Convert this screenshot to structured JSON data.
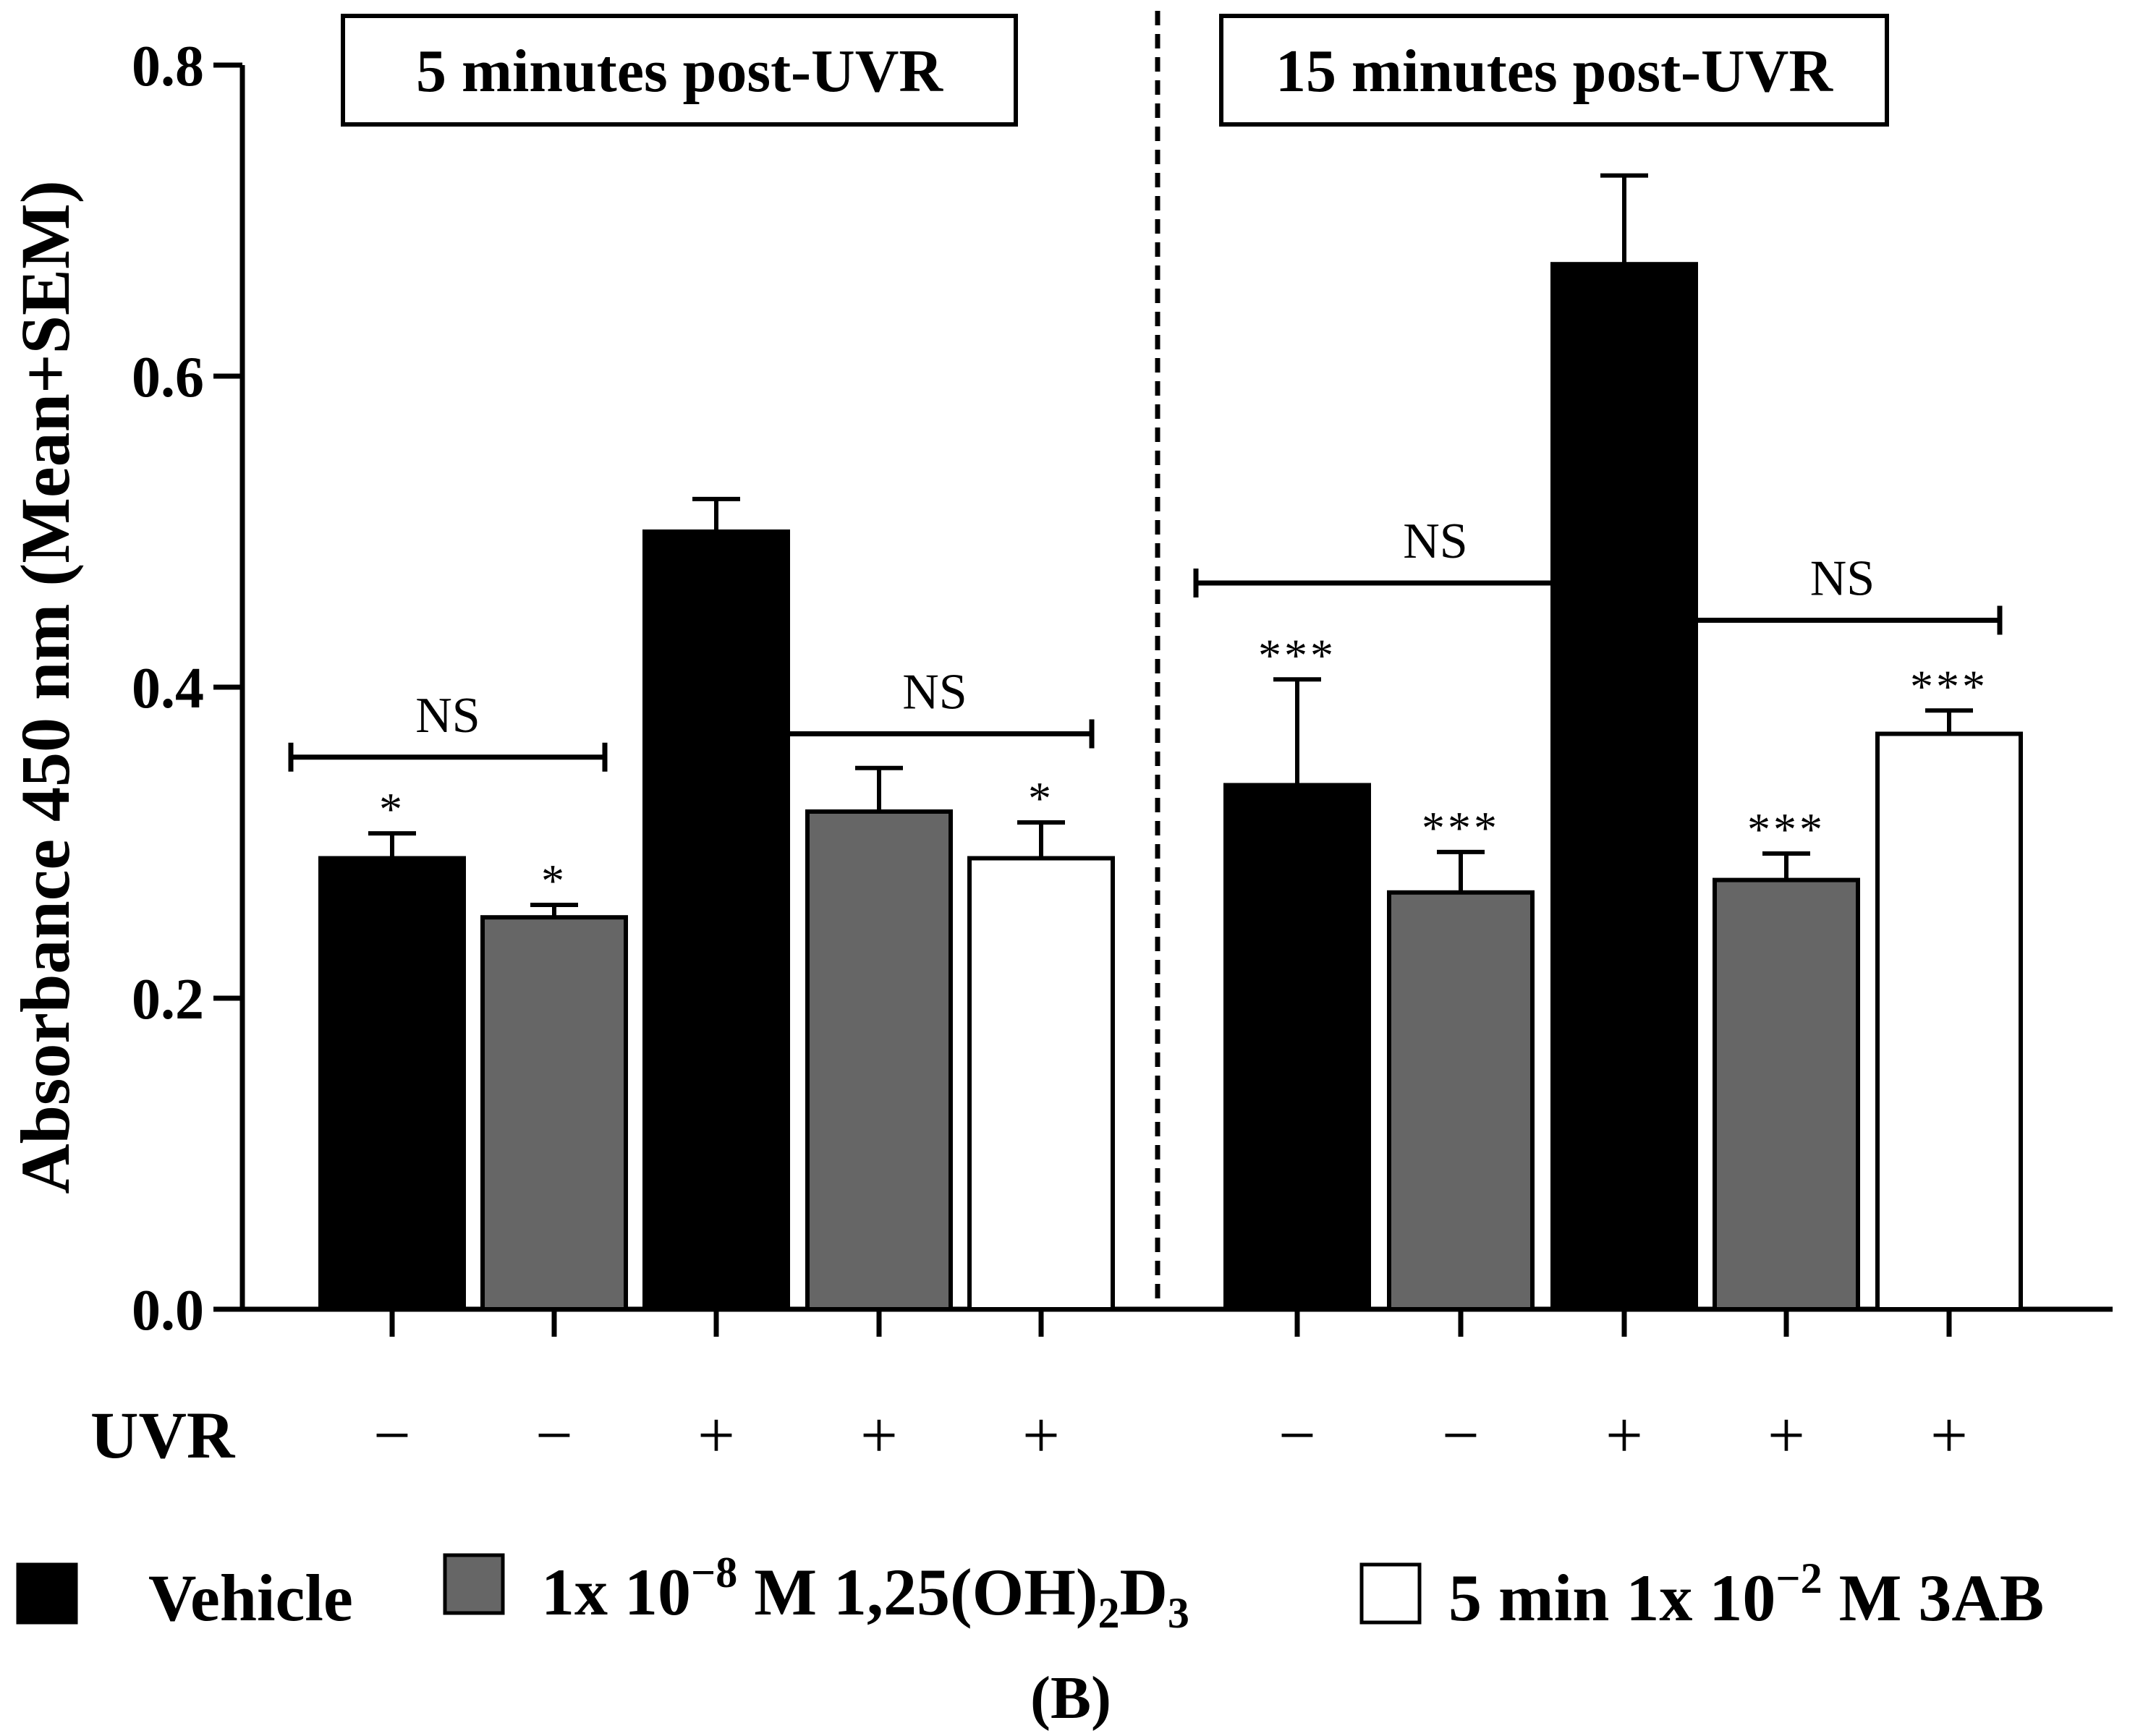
{
  "chart_data": {
    "type": "bar",
    "title": "",
    "ylabel": "Absorbance 450 nm (Mean+SEM)",
    "xlabel": "",
    "ylim": [
      0,
      0.8
    ],
    "yticks": [
      0.0,
      0.2,
      0.4,
      0.6,
      0.8
    ],
    "ytick_labels": [
      "0.0",
      "0.2",
      "0.4",
      "0.6",
      "0.8"
    ],
    "panel_label": "(B)",
    "row_label": "UVR",
    "series_colors": {
      "vehicle": "#000000",
      "vitd": "#666666",
      "3ab": "#ffffff"
    },
    "legend": [
      {
        "key": "vehicle",
        "text": "Vehicle"
      },
      {
        "key": "vitd",
        "parts": [
          "1x 10",
          "−8",
          " M 1,25(OH)",
          "2",
          "D",
          "3"
        ]
      },
      {
        "key": "3ab",
        "parts": [
          "5 min 1x 10",
          "−2",
          " M 3AB"
        ]
      }
    ],
    "groups": [
      {
        "title": "5 minutes post-UVR",
        "bars": [
          {
            "series": "vehicle",
            "uvr": "−",
            "value": 0.29,
            "sem": 0.016,
            "sig": "*"
          },
          {
            "series": "vitd",
            "uvr": "−",
            "value": 0.252,
            "sem": 0.008,
            "sig": "*"
          },
          {
            "series": "vehicle",
            "uvr": "+",
            "value": 0.5,
            "sem": 0.021,
            "sig": ""
          },
          {
            "series": "vitd",
            "uvr": "+",
            "value": 0.32,
            "sem": 0.028,
            "sig": ""
          },
          {
            "series": "3ab",
            "uvr": "+",
            "value": 0.29,
            "sem": 0.023,
            "sig": "*"
          }
        ],
        "brackets": [
          {
            "from": 0,
            "to": 1,
            "y": 0.355,
            "label": "NS"
          },
          {
            "from": 3,
            "to": 4,
            "y": 0.37,
            "label": "NS"
          }
        ]
      },
      {
        "title": "15 minutes post-UVR",
        "bars": [
          {
            "series": "vehicle",
            "uvr": "−",
            "value": 0.337,
            "sem": 0.068,
            "sig": "***"
          },
          {
            "series": "vitd",
            "uvr": "−",
            "value": 0.268,
            "sem": 0.026,
            "sig": "***"
          },
          {
            "series": "vehicle",
            "uvr": "+",
            "value": 0.672,
            "sem": 0.057,
            "sig": ""
          },
          {
            "series": "vitd",
            "uvr": "+",
            "value": 0.276,
            "sem": 0.017,
            "sig": "***"
          },
          {
            "series": "3ab",
            "uvr": "+",
            "value": 0.37,
            "sem": 0.015,
            "sig": "***"
          }
        ],
        "brackets": [
          {
            "from": 0,
            "to": 2,
            "y": 0.467,
            "label": "NS"
          },
          {
            "from": 3,
            "to": 4,
            "y": 0.443,
            "label": "NS"
          }
        ]
      }
    ]
  }
}
